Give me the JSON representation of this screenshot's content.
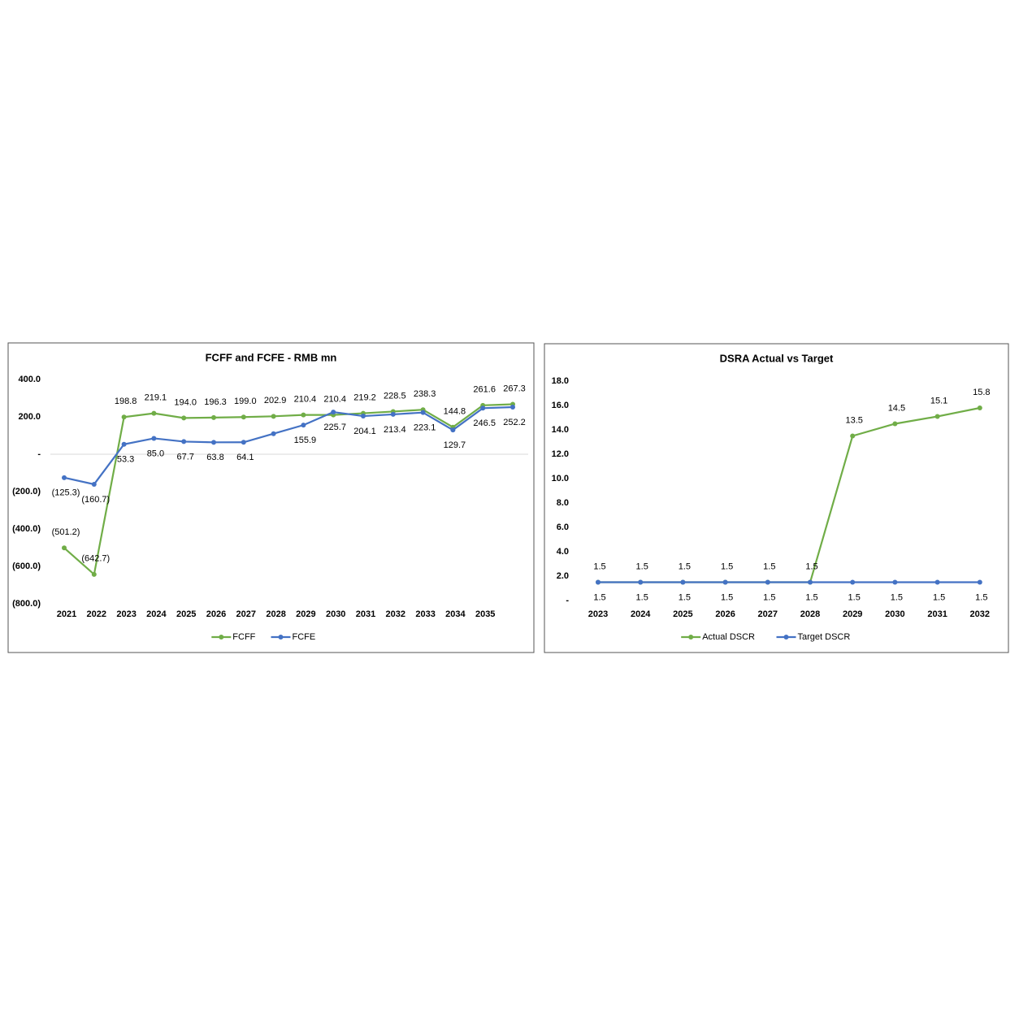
{
  "chart_data": [
    {
      "type": "line",
      "title": "FCFF and FCFE - RMB mn",
      "categories": [
        "2021",
        "2022",
        "2023",
        "2024",
        "2025",
        "2026",
        "2027",
        "2028",
        "2029",
        "2030",
        "2031",
        "2032",
        "2033",
        "2034",
        "2035",
        null
      ],
      "series": [
        {
          "name": "FCFF",
          "color": "#70ad47",
          "values": [
            -501.2,
            -642.7,
            198.8,
            219.1,
            194.0,
            196.3,
            199.0,
            202.9,
            210.4,
            210.4,
            219.2,
            228.5,
            238.3,
            144.8,
            261.6,
            267.3
          ],
          "value_labels": [
            "(501.2)",
            "(642.7)",
            "198.8",
            "219.1",
            "194.0",
            "196.3",
            "199.0",
            "202.9",
            "210.4",
            "210.4",
            "219.2",
            "228.5",
            "238.3",
            "144.8",
            "261.6",
            "267.3"
          ]
        },
        {
          "name": "FCFE",
          "color": "#4472c4",
          "values": [
            -125.3,
            -160.7,
            53.3,
            85.0,
            67.7,
            63.8,
            64.1,
            110,
            155.9,
            225.7,
            204.1,
            213.4,
            223.1,
            129.7,
            246.5,
            252.2
          ],
          "value_labels": [
            "(125.3)",
            "(160.7)",
            "53.3",
            "85.0",
            "67.7",
            "63.8",
            "64.1",
            null,
            "155.9",
            "225.7",
            "204.1",
            "213.4",
            "223.1",
            "129.7",
            "246.5",
            "252.2"
          ]
        }
      ],
      "ylim": [
        -800,
        400
      ],
      "yticks": [
        {
          "value": 400,
          "label": "400.0"
        },
        {
          "value": 200,
          "label": "200.0"
        },
        {
          "value": 0,
          "label": "-"
        },
        {
          "value": -200,
          "label": "(200.0)"
        },
        {
          "value": -400,
          "label": "(400.0)"
        },
        {
          "value": -600,
          "label": "(600.0)"
        },
        {
          "value": -800,
          "label": "(800.0)"
        }
      ],
      "zero_line": true,
      "legend": "bottom"
    },
    {
      "type": "line",
      "title": "DSRA Actual vs Target",
      "categories": [
        "2023",
        "2024",
        "2025",
        "2026",
        "2027",
        "2028",
        "2029",
        "2030",
        "2031",
        "2032"
      ],
      "series": [
        {
          "name": "Actual DSCR",
          "color": "#70ad47",
          "values": [
            1.5,
            1.5,
            1.5,
            1.5,
            1.5,
            1.5,
            13.5,
            14.5,
            15.1,
            15.8
          ]
        },
        {
          "name": "Target DSCR",
          "color": "#4472c4",
          "values": [
            1.5,
            1.5,
            1.5,
            1.5,
            1.5,
            1.5,
            1.5,
            1.5,
            1.5,
            1.5
          ]
        }
      ],
      "ylim": [
        0,
        18
      ],
      "yticks": [
        {
          "value": 18,
          "label": "18.0"
        },
        {
          "value": 16,
          "label": "16.0"
        },
        {
          "value": 14,
          "label": "14.0"
        },
        {
          "value": 12,
          "label": "12.0"
        },
        {
          "value": 10,
          "label": "10.0"
        },
        {
          "value": 8,
          "label": "8.0"
        },
        {
          "value": 6,
          "label": "6.0"
        },
        {
          "value": 4,
          "label": "4.0"
        },
        {
          "value": 2,
          "label": "2.0"
        },
        {
          "value": 0,
          "label": "-"
        }
      ],
      "zero_line": false,
      "legend": "bottom"
    }
  ]
}
